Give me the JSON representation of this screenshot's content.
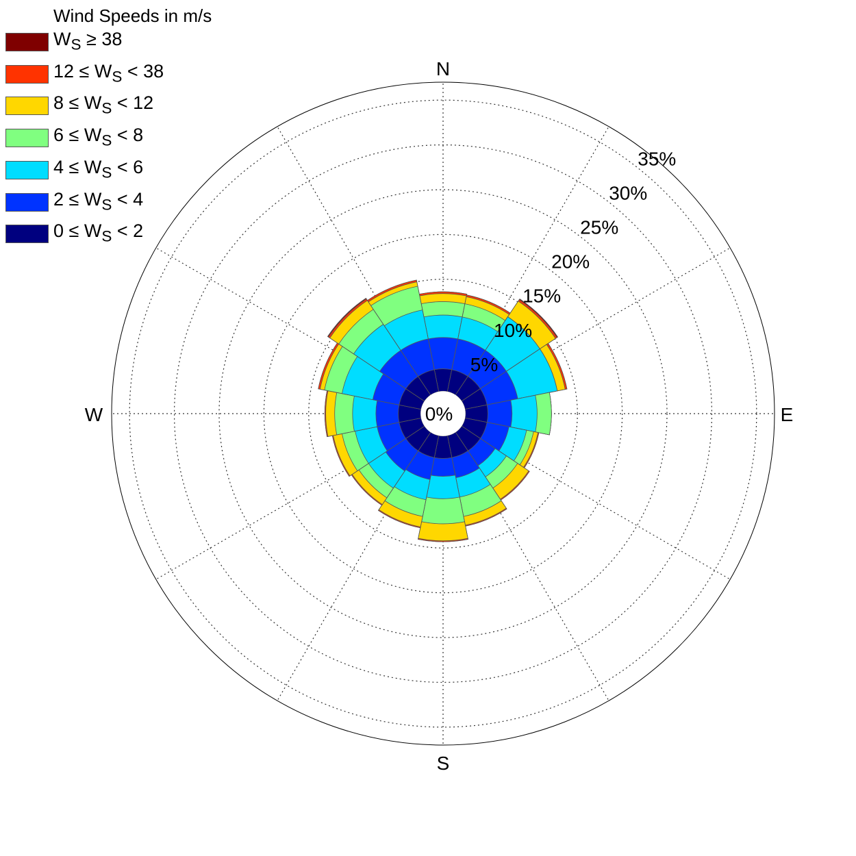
{
  "chart_data": {
    "type": "windrose",
    "legend_title": "Wind Speeds in m/s",
    "directions_labels": {
      "N": "N",
      "E": "E",
      "S": "S",
      "W": "W"
    },
    "radial_tick_labels": [
      "0%",
      "5%",
      "10%",
      "15%",
      "20%",
      "25%",
      "30%",
      "35%"
    ],
    "radial_ticks": [
      0,
      5,
      10,
      15,
      20,
      25,
      30,
      35
    ],
    "rmax": 37,
    "grid": true,
    "legend_position": "top-left",
    "bins": [
      {
        "label_html": "0 &le; W<sub>S</sub> &lt; 2",
        "color": "#00007F"
      },
      {
        "label_html": "2 &le; W<sub>S</sub> &lt; 4",
        "color": "#0033FF"
      },
      {
        "label_html": "4 &le; W<sub>S</sub> &lt; 6",
        "color": "#00DDFF"
      },
      {
        "label_html": "6 &le; W<sub>S</sub> &lt; 8",
        "color": "#80FF80"
      },
      {
        "label_html": "8 &le; W<sub>S</sub> &lt; 12",
        "color": "#FFD700"
      },
      {
        "label_html": "12 &le; W<sub>S</sub> &lt; 38",
        "color": "#FF3300"
      },
      {
        "label_html": "W<sub>S</sub> &ge; 38",
        "color": "#7F0000"
      }
    ],
    "sectors": [
      {
        "direction_deg": 0,
        "cumulative_pct": [
          2.5,
          6.0,
          8.5,
          10.0,
          10.9,
          11.1,
          11.1
        ]
      },
      {
        "direction_deg": 22.5,
        "cumulative_pct": [
          2.5,
          6.0,
          8.5,
          10.0,
          10.8,
          11.0,
          11.0
        ]
      },
      {
        "direction_deg": 45,
        "cumulative_pct": [
          2.5,
          6.0,
          10.5,
          10.5,
          12.6,
          12.8,
          12.9
        ]
      },
      {
        "direction_deg": 67.5,
        "cumulative_pct": [
          2.5,
          6.0,
          10.5,
          10.5,
          11.4,
          11.6,
          11.6
        ]
      },
      {
        "direction_deg": 90,
        "cumulative_pct": [
          2.5,
          5.2,
          8.0,
          9.6,
          9.6,
          9.6,
          9.6
        ]
      },
      {
        "direction_deg": 112.5,
        "cumulative_pct": [
          2.5,
          5.0,
          7.0,
          7.8,
          8.3,
          8.4,
          8.4
        ]
      },
      {
        "direction_deg": 135,
        "cumulative_pct": [
          2.5,
          4.5,
          6.0,
          7.5,
          9.0,
          9.1,
          9.1
        ]
      },
      {
        "direction_deg": 157.5,
        "cumulative_pct": [
          2.5,
          4.8,
          7.0,
          9.2,
          10.2,
          10.3,
          10.3
        ]
      },
      {
        "direction_deg": 180,
        "cumulative_pct": [
          2.5,
          4.5,
          7.0,
          9.8,
          11.7,
          11.8,
          11.8
        ]
      },
      {
        "direction_deg": 202.5,
        "cumulative_pct": [
          2.5,
          5.0,
          7.3,
          9.2,
          10.4,
          10.5,
          10.5
        ]
      },
      {
        "direction_deg": 225,
        "cumulative_pct": [
          2.5,
          5.2,
          7.5,
          8.8,
          9.7,
          9.8,
          9.8
        ]
      },
      {
        "direction_deg": 247.5,
        "cumulative_pct": [
          2.5,
          5.0,
          7.5,
          9.0,
          10.0,
          10.1,
          10.1
        ]
      },
      {
        "direction_deg": 270,
        "cumulative_pct": [
          2.5,
          5.0,
          7.6,
          9.6,
          10.6,
          10.7,
          10.7
        ]
      },
      {
        "direction_deg": 292.5,
        "cumulative_pct": [
          2.5,
          5.5,
          9.0,
          11.0,
          11.5,
          11.7,
          11.7
        ]
      },
      {
        "direction_deg": 315,
        "cumulative_pct": [
          2.5,
          6.0,
          9.5,
          11.5,
          12.7,
          12.9,
          13.0
        ]
      },
      {
        "direction_deg": 337.5,
        "cumulative_pct": [
          2.5,
          6.0,
          9.3,
          12.0,
          12.5,
          12.7,
          12.7
        ]
      }
    ]
  }
}
